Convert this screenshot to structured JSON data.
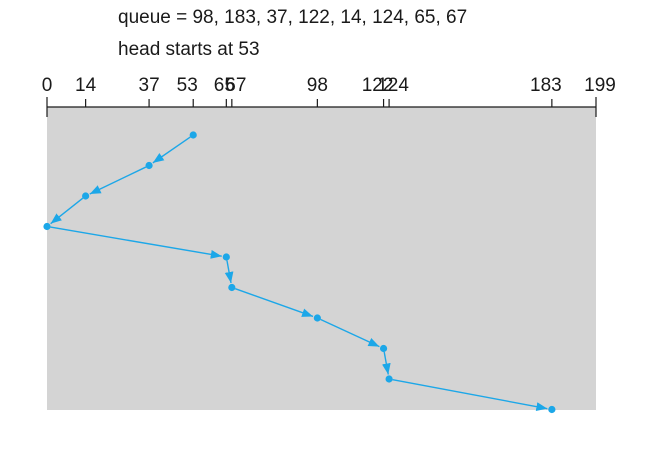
{
  "caption": {
    "queue_line": "queue = 98, 183, 37, 122, 14, 124, 65, 67",
    "head_line": "head starts at 53"
  },
  "axis": {
    "min": 0,
    "max": 199,
    "ticks": [
      "0",
      "14",
      "37",
      "53",
      "65",
      "67",
      "98",
      "122",
      "124",
      "183",
      "199"
    ]
  },
  "chart_data": {
    "type": "line",
    "title": "",
    "xlabel": "",
    "ylabel": "",
    "xlim": [
      0,
      199
    ],
    "tick_values": [
      0,
      14,
      37,
      53,
      65,
      67,
      98,
      122,
      124,
      183,
      199
    ],
    "head_start": 53,
    "service_order": [
      53,
      37,
      14,
      0,
      65,
      67,
      98,
      122,
      124,
      183
    ],
    "colors": {
      "path": "#1ca7e8",
      "panel": "#d4d4d4",
      "axis": "#1a1a1a"
    }
  }
}
